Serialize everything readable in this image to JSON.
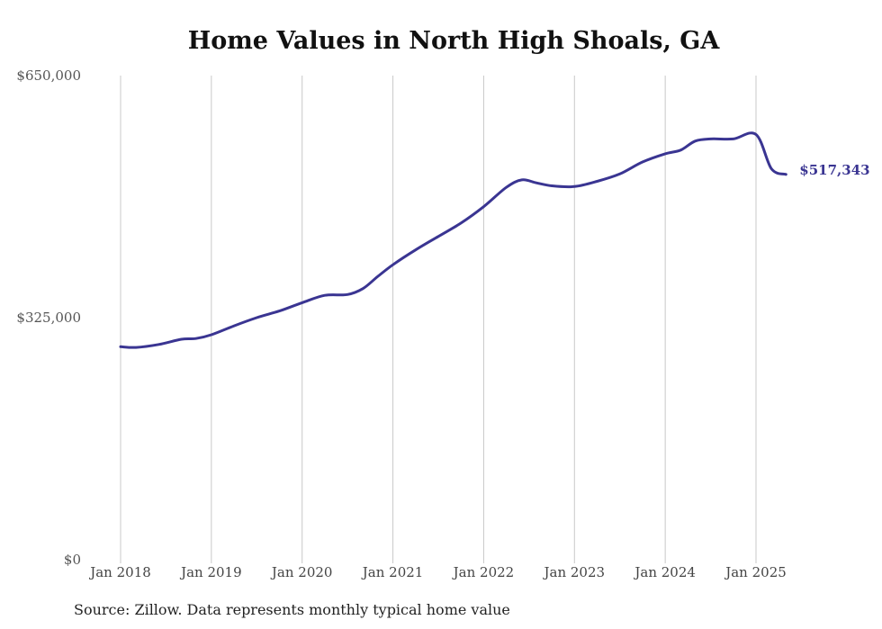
{
  "chart_data": {
    "type": "line",
    "title": "Home Values in North High Shoals, GA",
    "xlabel": "",
    "ylabel": "",
    "ylim": [
      0,
      650000
    ],
    "y_ticks": [
      {
        "value": 0,
        "label": "$0"
      },
      {
        "value": 325000,
        "label": "$325,000"
      },
      {
        "value": 650000,
        "label": "$650,000"
      }
    ],
    "x_ticks": [
      {
        "value": 2018,
        "label": "Jan 2018"
      },
      {
        "value": 2019,
        "label": "Jan 2019"
      },
      {
        "value": 2020,
        "label": "Jan 2020"
      },
      {
        "value": 2021,
        "label": "Jan 2021"
      },
      {
        "value": 2022,
        "label": "Jan 2022"
      },
      {
        "value": 2023,
        "label": "Jan 2023"
      },
      {
        "value": 2024,
        "label": "Jan 2024"
      },
      {
        "value": 2025,
        "label": "Jan 2025"
      }
    ],
    "xlim": [
      2018,
      2025.35
    ],
    "grid": "vertical",
    "line_color": "#3a3592",
    "end_label": "$517,343",
    "series": [
      {
        "x": [
          2018.0,
          2018.17,
          2018.42,
          2018.67,
          2018.83,
          2019.0,
          2019.25,
          2019.5,
          2019.75,
          2020.0,
          2020.25,
          2020.5,
          2020.67,
          2020.83,
          2021.0,
          2021.25,
          2021.5,
          2021.75,
          2022.0,
          2022.25,
          2022.42,
          2022.58,
          2022.75,
          2023.0,
          2023.25,
          2023.5,
          2023.75,
          2024.0,
          2024.17,
          2024.33,
          2024.5,
          2024.75,
          2025.0,
          2025.17,
          2025.33
        ],
        "values": [
          286000,
          285000,
          289000,
          296000,
          297000,
          302000,
          314000,
          325000,
          334000,
          345000,
          355000,
          356000,
          364000,
          380000,
          396000,
          416000,
          434000,
          452000,
          474000,
          500000,
          510000,
          506000,
          502000,
          501000,
          508000,
          518000,
          534000,
          545000,
          550000,
          562000,
          565000,
          565000,
          571000,
          525000,
          517343
        ]
      }
    ]
  },
  "source": "Source: Zillow. Data represents monthly typical home value"
}
